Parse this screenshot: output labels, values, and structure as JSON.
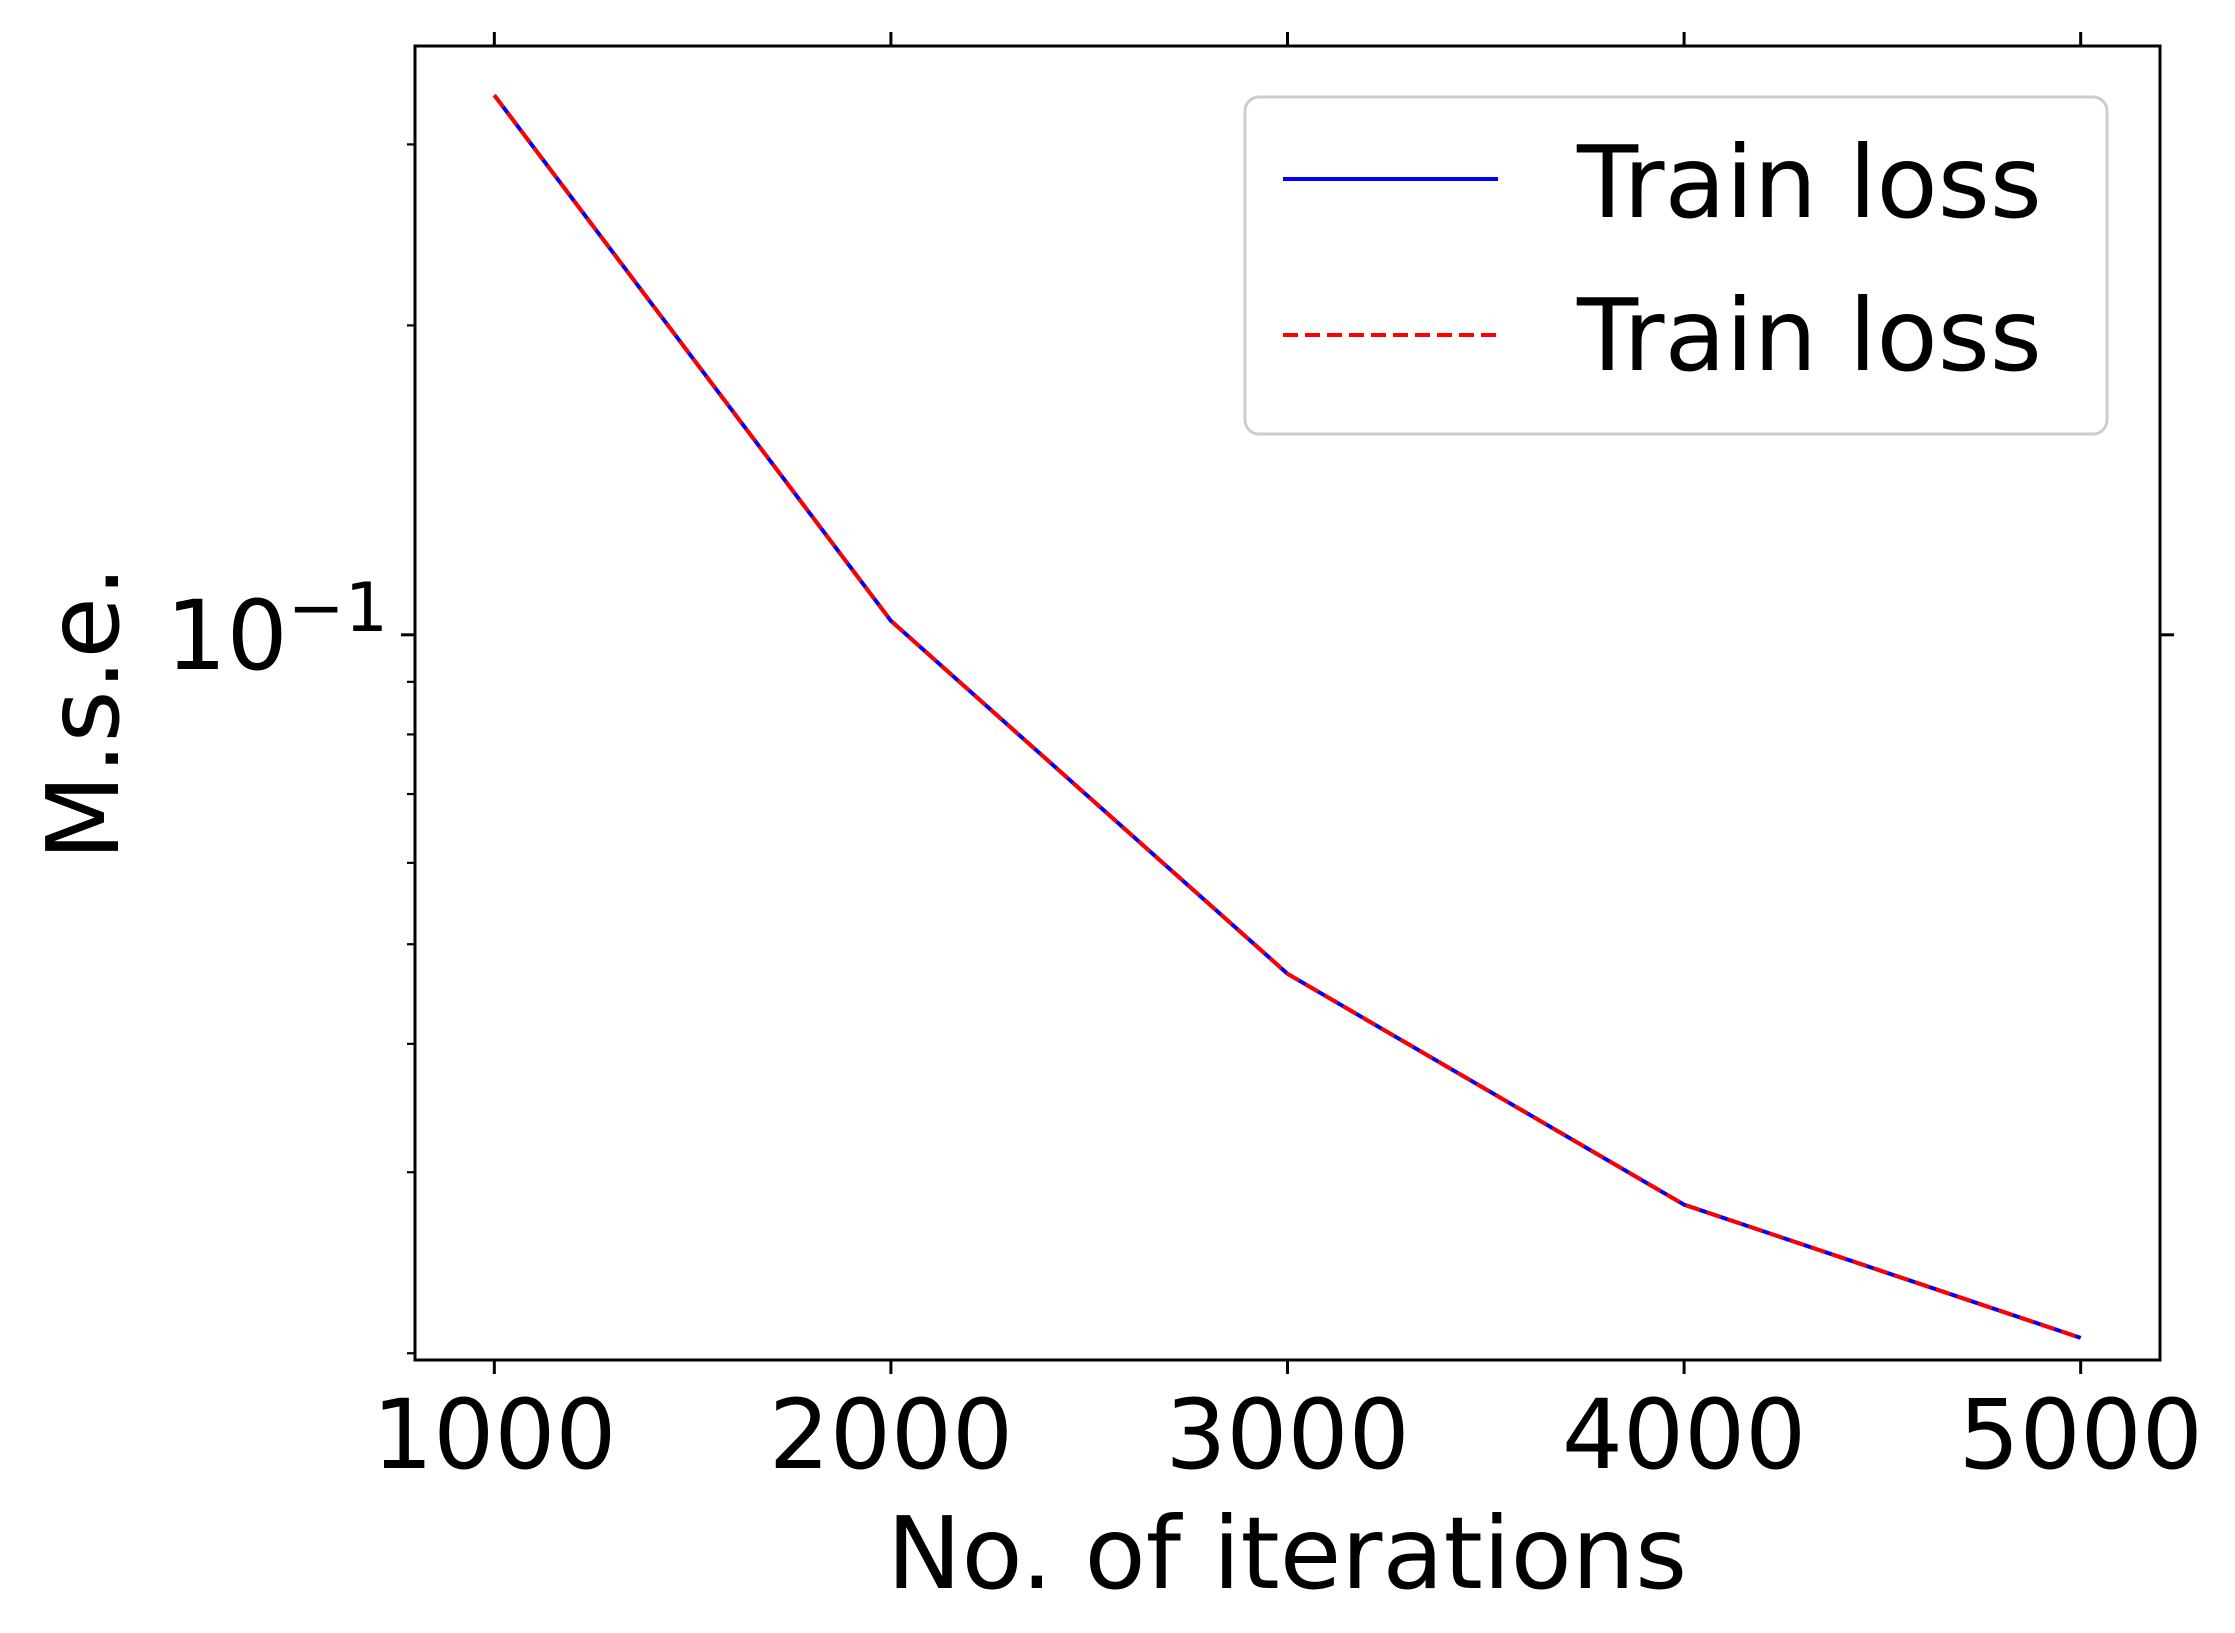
{
  "chart_data": {
    "type": "line",
    "title": "",
    "xlabel": "No. of iterations",
    "ylabel": "M.s.e.",
    "y_scale": "log",
    "x_ticks": [
      1000,
      2000,
      3000,
      4000,
      5000
    ],
    "x_tick_labels": [
      "1000",
      "2000",
      "3000",
      "4000",
      "5000"
    ],
    "y_major_tick": {
      "value": 0.1,
      "base": "10",
      "exponent": "−1"
    },
    "xlim": [
      800,
      5200
    ],
    "ylim": [
      0.0197,
      0.374
    ],
    "grid": false,
    "legend_position": "top-right",
    "x": [
      1000,
      2000,
      3000,
      4000,
      5000
    ],
    "series": [
      {
        "name": "Train loss",
        "color": "#0000ff",
        "style": "solid",
        "values": [
          0.335,
          0.1032,
          0.0468,
          0.0279,
          0.0207
        ]
      },
      {
        "name": "Train loss",
        "color": "#ff0000",
        "style": "dashed",
        "values": [
          0.335,
          0.1032,
          0.0468,
          0.0279,
          0.0207
        ]
      }
    ]
  }
}
